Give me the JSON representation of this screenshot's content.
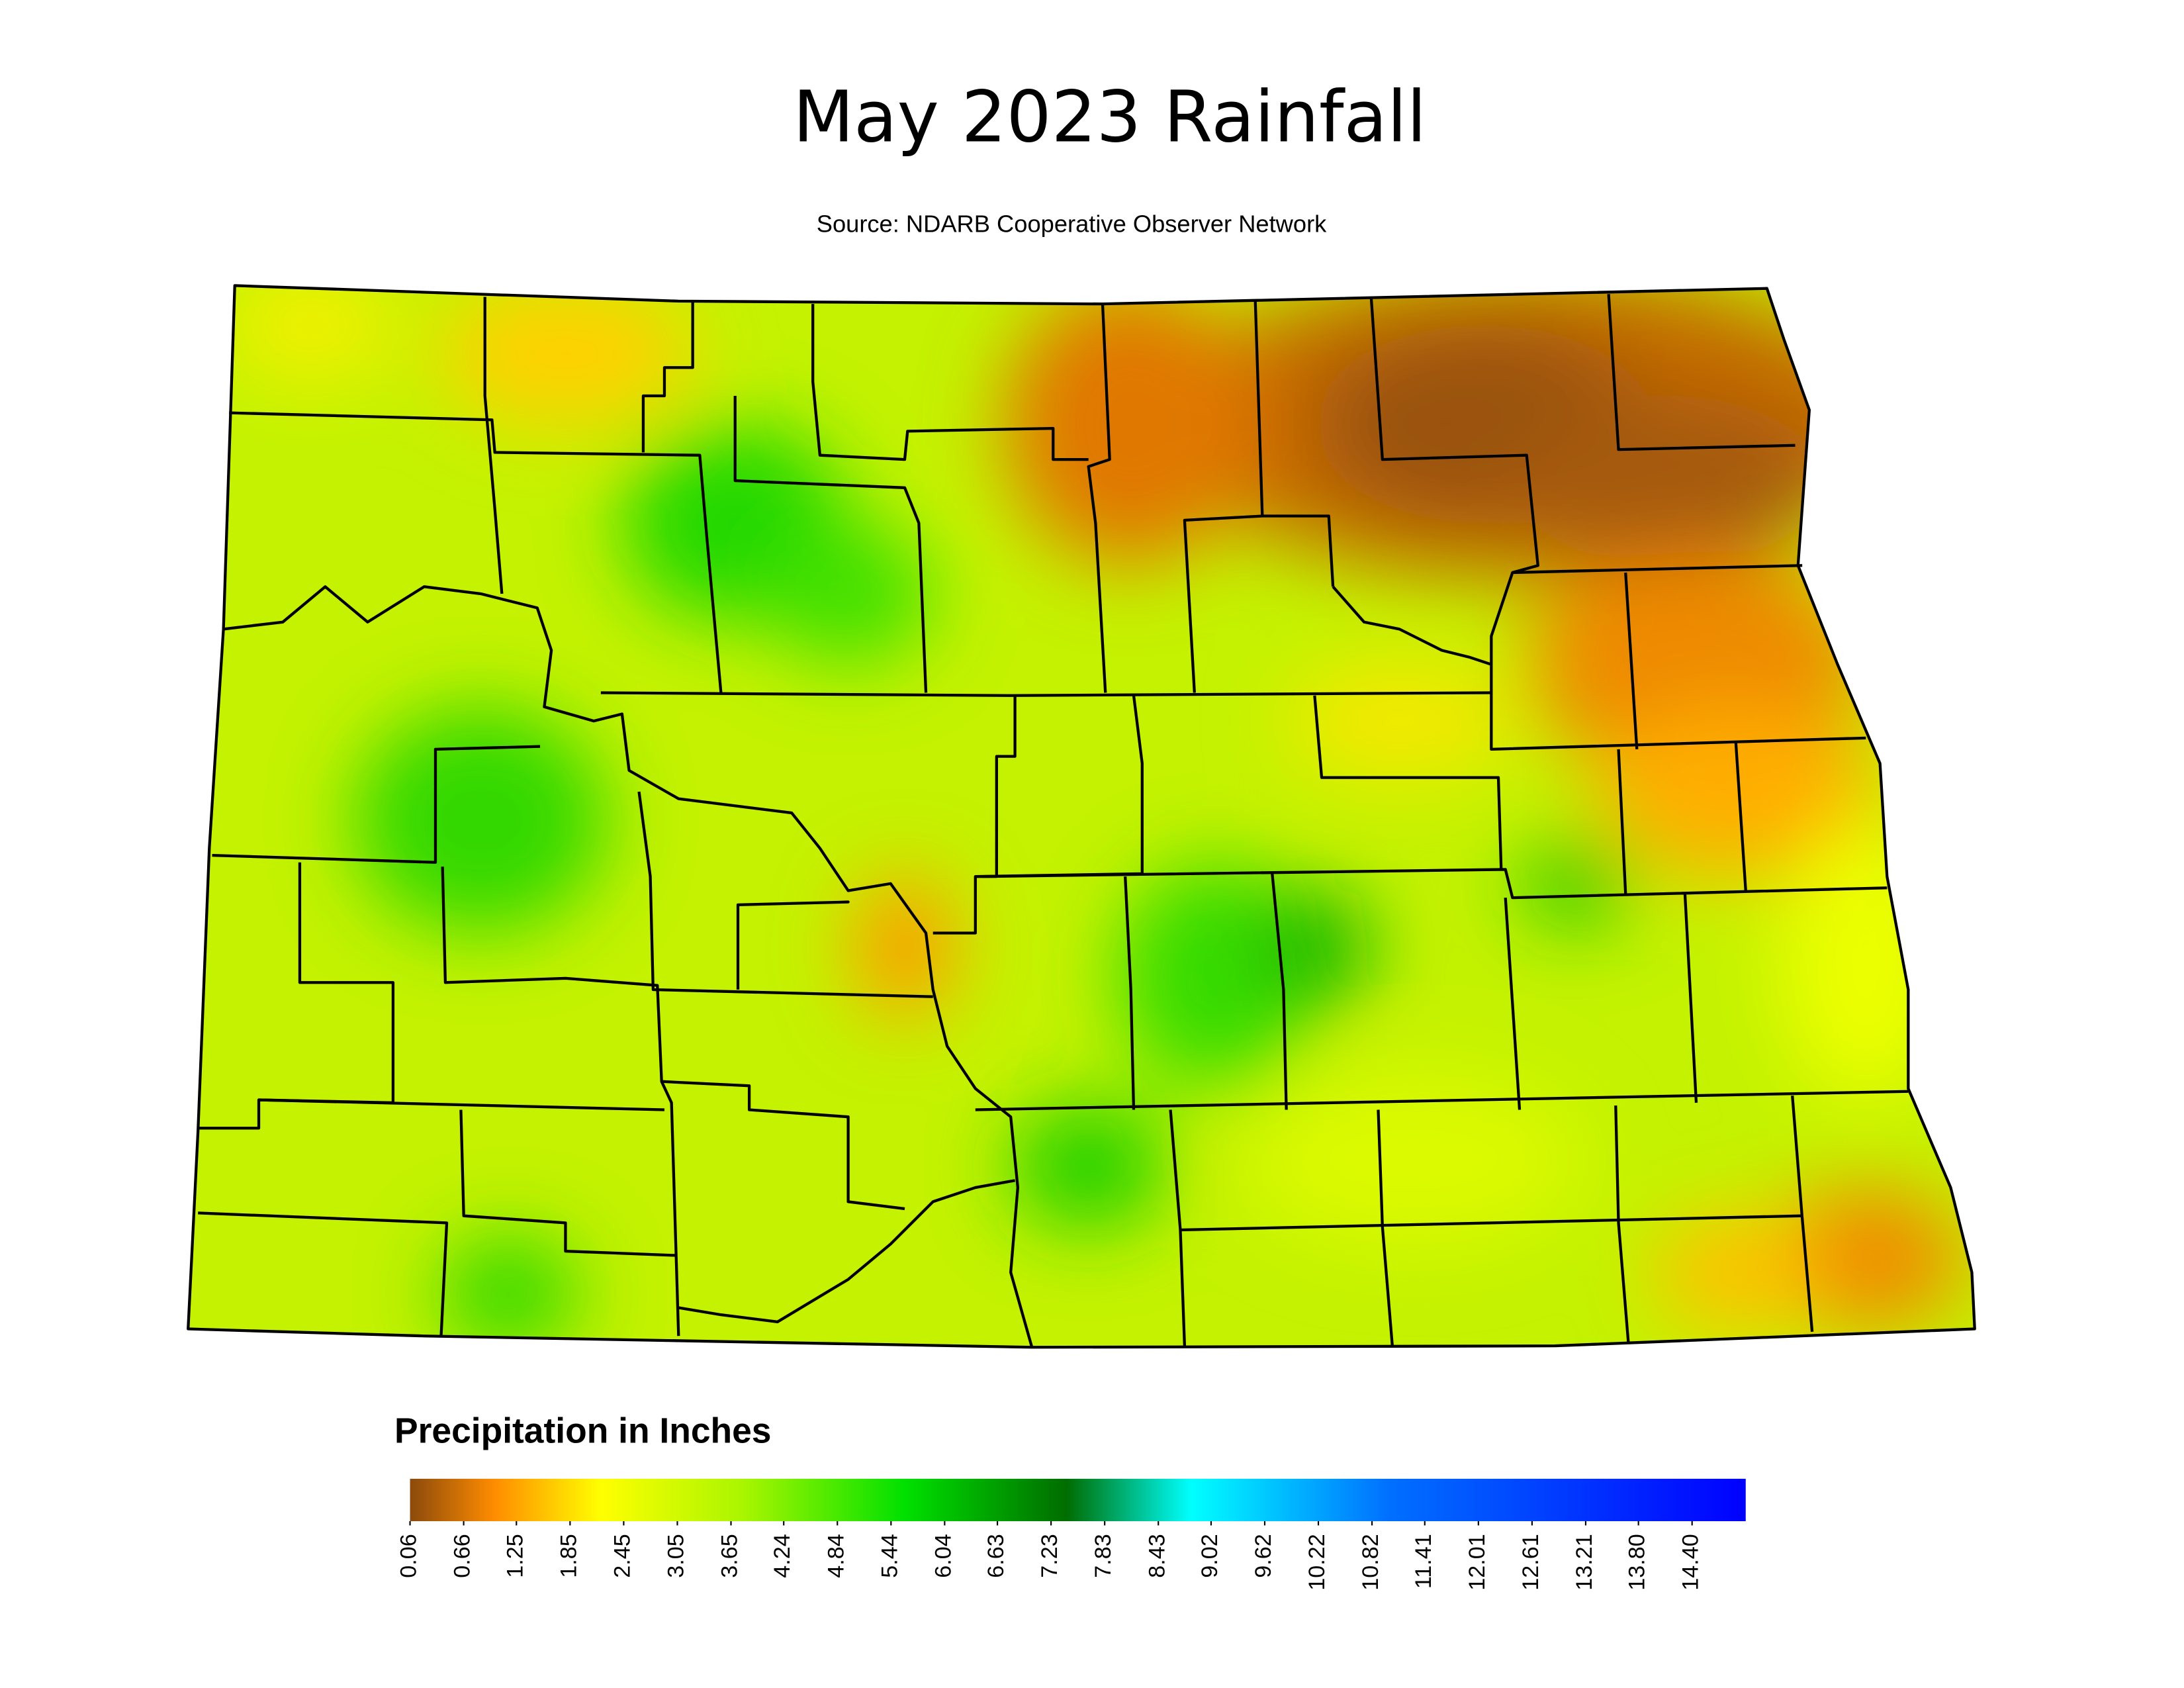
{
  "title": "May 2023 Rainfall",
  "subtitle": "Source: NDARB Cooperative Observer Network",
  "legend": {
    "title": "Precipitation in Inches",
    "lim": [
      0.06,
      15.0
    ],
    "color_stops": [
      {
        "value": 0.06,
        "color": "#8b4a0c"
      },
      {
        "value": 1.0,
        "color": "#ff8c00"
      },
      {
        "value": 2.2,
        "color": "#ffff00"
      },
      {
        "value": 3.8,
        "color": "#a8f500"
      },
      {
        "value": 5.6,
        "color": "#00e000"
      },
      {
        "value": 7.4,
        "color": "#006d00"
      },
      {
        "value": 8.8,
        "color": "#00ffff"
      },
      {
        "value": 11.0,
        "color": "#0070ff"
      },
      {
        "value": 15.0,
        "color": "#0000ff"
      }
    ],
    "ticks": [
      0.06,
      0.66,
      1.25,
      1.85,
      2.45,
      3.05,
      3.65,
      4.24,
      4.84,
      5.44,
      6.04,
      6.63,
      7.23,
      7.83,
      8.43,
      9.02,
      9.62,
      10.22,
      10.82,
      11.41,
      12.01,
      12.61,
      13.21,
      {
        "value": 13.8,
        "label": "13.80"
      },
      {
        "value": 14.4,
        "label": "14.40"
      }
    ]
  }
}
